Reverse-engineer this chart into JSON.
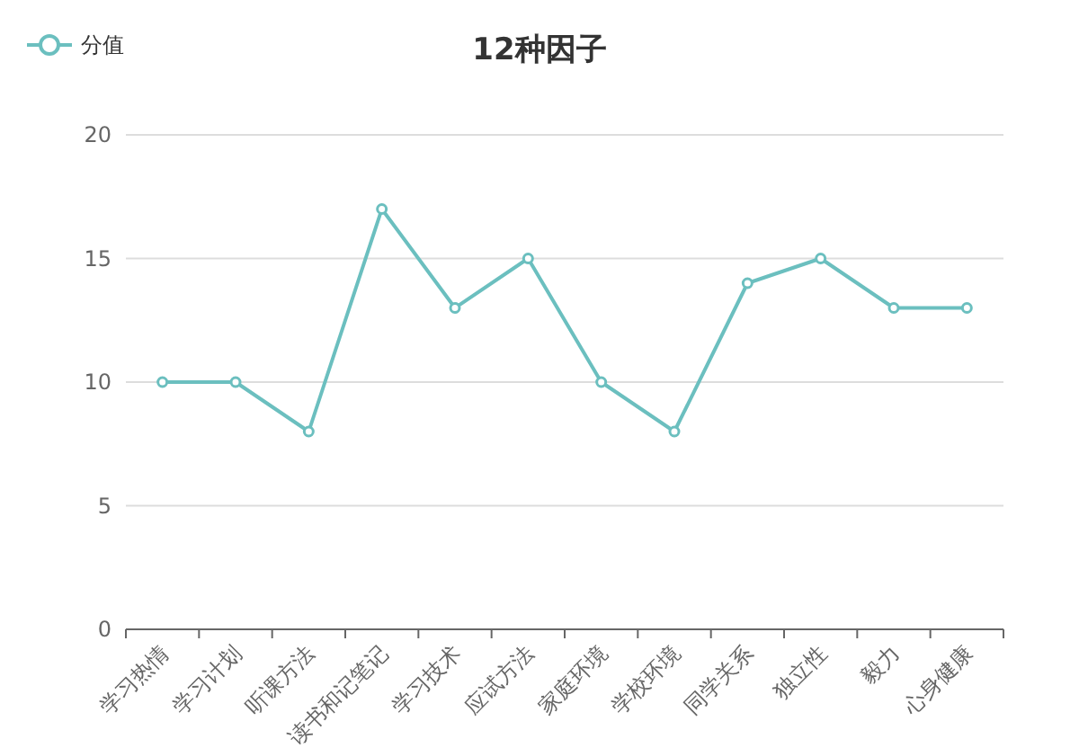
{
  "chart_data": {
    "type": "line",
    "title": "12种因子",
    "categories": [
      "学习热情",
      "学习计划",
      "听课方法",
      "读书和记笔记",
      "学习技术",
      "应试方法",
      "家庭环境",
      "学校环境",
      "同学关系",
      "独立性",
      "毅力",
      "心身健康"
    ],
    "series": [
      {
        "name": "分值",
        "color": "#6bbfbf",
        "values": [
          10,
          10,
          8,
          17,
          13,
          15,
          10,
          8,
          14,
          15,
          13,
          13
        ]
      }
    ],
    "ylim": [
      0,
      20
    ],
    "yticks": [
      0,
      5,
      10,
      15,
      20
    ],
    "grid": "y",
    "legend": "top left",
    "marker": "circle"
  }
}
